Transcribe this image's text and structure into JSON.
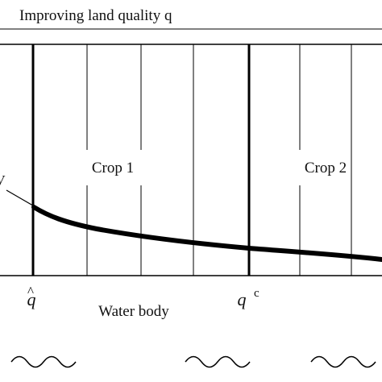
{
  "header": {
    "title": "Improving land quality q"
  },
  "labels": {
    "crop1": "Crop 1",
    "crop2": "Crop 2",
    "left_edge_mark": "W",
    "water_body": "Water body"
  },
  "axis_marks": {
    "q_hat": {
      "base": "q",
      "accent": "^"
    },
    "q_c": {
      "base": "q",
      "superscript": "c"
    }
  },
  "decorations": {
    "waves": [
      "water-wave",
      "water-wave",
      "water-wave"
    ]
  },
  "colors": {
    "ink": "#000000",
    "background": "#ffffff"
  }
}
